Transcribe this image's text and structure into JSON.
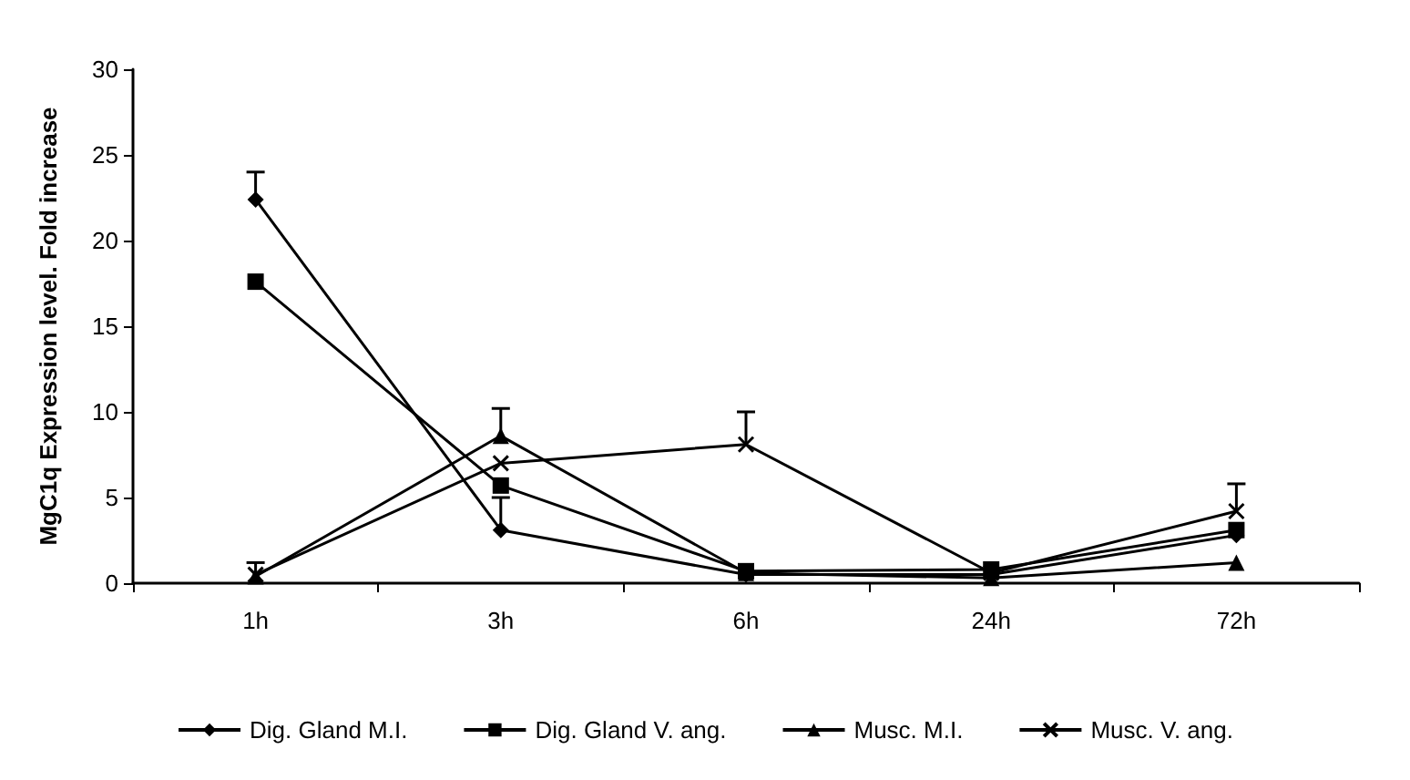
{
  "chart_data": {
    "type": "line",
    "ylabel": "MgC1q Expression level. Fold increase",
    "categories": [
      "1h",
      "3h",
      "6h",
      "24h",
      "72h"
    ],
    "ylim": [
      0,
      30
    ],
    "yticks": [
      0,
      5,
      10,
      15,
      20,
      25,
      30
    ],
    "grid": false,
    "legend": "bottom",
    "series": [
      {
        "name": "Dig. Gland M.I.",
        "color": "#000000",
        "marker": "diamond",
        "values": [
          22.4,
          3.1,
          0.5,
          0.5,
          2.8
        ],
        "errors": [
          [
            22.4,
            24
          ],
          [
            3.1,
            5
          ],
          null,
          null,
          null
        ]
      },
      {
        "name": "Dig. Gland V. ang.",
        "color": "#000000",
        "marker": "square",
        "values": [
          17.6,
          5.7,
          0.7,
          0.8,
          3.1
        ],
        "errors": [
          null,
          null,
          null,
          null,
          null
        ]
      },
      {
        "name": "Musc. M.I.",
        "color": "#000000",
        "marker": "triangle",
        "values": [
          0.4,
          8.6,
          0.6,
          0.3,
          1.2
        ],
        "errors": [
          null,
          [
            8.6,
            10.2
          ],
          null,
          null,
          null
        ]
      },
      {
        "name": "Musc. V. ang.",
        "color": "#000000",
        "marker": "cross",
        "values": [
          0.5,
          7.0,
          8.1,
          0.6,
          4.2
        ],
        "errors": [
          [
            0.5,
            1.2
          ],
          null,
          [
            8.1,
            10
          ],
          null,
          [
            4.2,
            5.8
          ]
        ]
      }
    ]
  }
}
